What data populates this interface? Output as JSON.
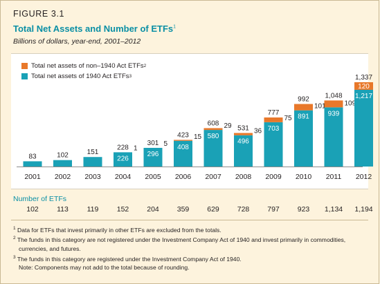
{
  "figure_label": "FIGURE 3.1",
  "title": "Total Net Assets and Number of ETFs",
  "title_note": "1",
  "subtitle": "Billions of dollars, year-end, 2001–2012",
  "colors": {
    "series_non1940": "#e8782a",
    "series_1940": "#1aa1b6",
    "accent": "#0a8fa5"
  },
  "legend": [
    {
      "label": "Total net assets of non–1940 Act ETFs",
      "note": "2"
    },
    {
      "label": "Total net assets of 1940 Act ETFs",
      "note": "3"
    }
  ],
  "chart_data": {
    "type": "bar",
    "stacked": true,
    "categories": [
      "2001",
      "2002",
      "2003",
      "2004",
      "2005",
      "2006",
      "2007",
      "2008",
      "2009",
      "2010",
      "2011",
      "2012"
    ],
    "series": [
      {
        "name": "Total net assets of 1940 Act ETFs",
        "values": [
          83,
          102,
          151,
          226,
          296,
          408,
          580,
          496,
          703,
          891,
          939,
          1217
        ]
      },
      {
        "name": "Total net assets of non–1940 Act ETFs",
        "values": [
          0,
          0,
          0,
          1,
          5,
          15,
          29,
          36,
          75,
          101,
          109,
          120
        ]
      }
    ],
    "totals": [
      83,
      102,
      151,
      228,
      301,
      423,
      608,
      531,
      777,
      992,
      1048,
      1337
    ],
    "segment_labels_1940": [
      "",
      "",
      "",
      "226",
      "296",
      "408",
      "580",
      "496",
      "703",
      "891",
      "939",
      "1,217"
    ],
    "segment_labels_non1940": [
      "",
      "",
      "",
      "1",
      "5",
      "15",
      "29",
      "36",
      "75",
      "101",
      "109",
      "120"
    ],
    "total_labels": [
      "83",
      "102",
      "151",
      "228",
      "301",
      "423",
      "608",
      "531",
      "777",
      "992",
      "1,048",
      "1,337"
    ],
    "ylim": [
      0,
      1337
    ]
  },
  "count_title": "Number of ETFs",
  "counts": [
    "102",
    "113",
    "119",
    "152",
    "204",
    "359",
    "629",
    "728",
    "797",
    "923",
    "1,134",
    "1,194"
  ],
  "footnotes": [
    {
      "num": "1",
      "text": "Data for ETFs that invest primarily in other ETFs are excluded from the totals."
    },
    {
      "num": "2",
      "text": "The funds in this category are not registered under the Investment Company Act of 1940 and invest primarily in commodities,",
      "cont": "currencies, and futures."
    },
    {
      "num": "3",
      "text": "The funds in this category are registered under the Investment Company Act of 1940."
    },
    {
      "num": "",
      "text": "Note: Components may not add to the total because of rounding."
    }
  ]
}
